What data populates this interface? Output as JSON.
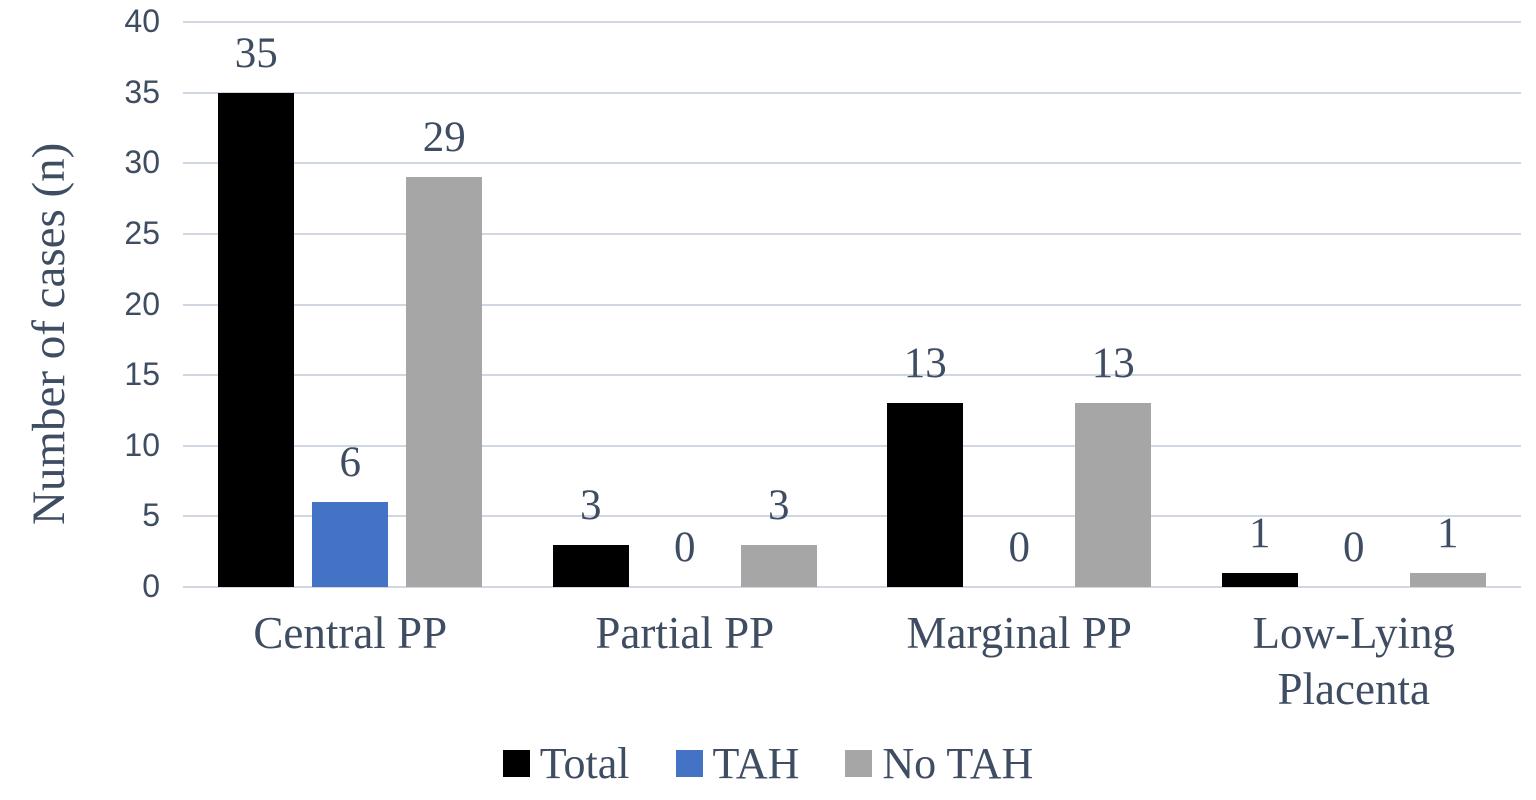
{
  "chart_data": {
    "type": "bar",
    "title": "",
    "ylabel": "Number of cases (n)",
    "xlabel": "",
    "categories": [
      "Central PP",
      "Partial PP",
      "Marginal PP",
      "Low-Lying Placenta"
    ],
    "series": [
      {
        "name": "Total",
        "color": "#000000",
        "values": [
          35,
          3,
          13,
          1
        ]
      },
      {
        "name": "TAH",
        "color": "#4472C4",
        "values": [
          6,
          0,
          0,
          0
        ]
      },
      {
        "name": "No TAH",
        "color": "#A6A6A6",
        "values": [
          29,
          3,
          13,
          1
        ]
      }
    ],
    "ylim": [
      0,
      40
    ],
    "yticks": [
      0,
      5,
      10,
      15,
      20,
      25,
      30,
      35,
      40
    ],
    "grid": true,
    "bar_labels_shown": true,
    "legend_position": "bottom",
    "text_color": "#3F4D63",
    "gridline_color": "#D0D6E2",
    "background": "#FFFFFF"
  }
}
